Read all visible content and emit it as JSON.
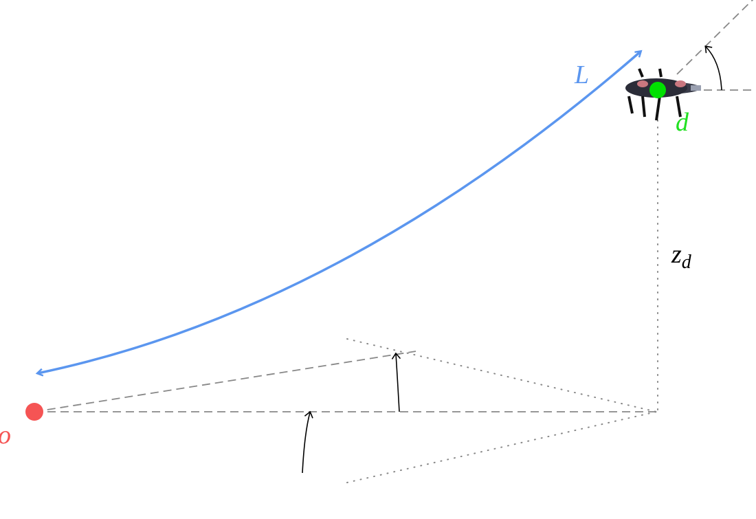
{
  "labels": {
    "L": "L",
    "d": "d",
    "z_d": {
      "symbol": "z",
      "subscript": "d"
    },
    "o": "o"
  }
}
